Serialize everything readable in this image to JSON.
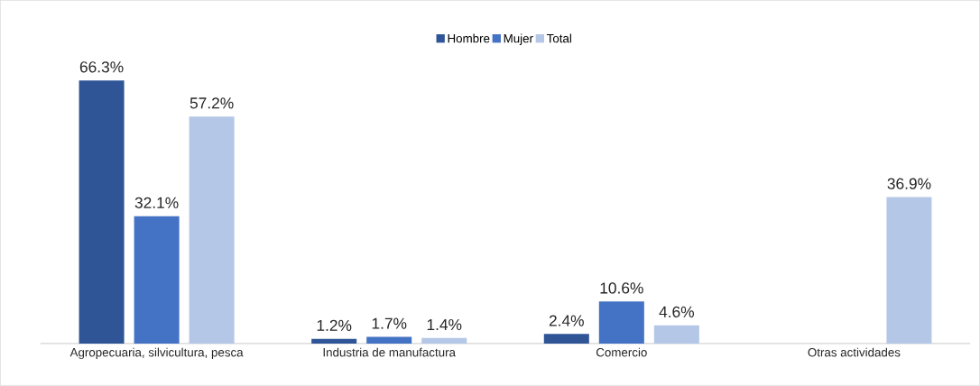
{
  "chart_data": {
    "type": "bar",
    "categories": [
      "Agropecuaria, silvicultura, pesca",
      "Industria de manufactura",
      "Comercio",
      "Otras actividades"
    ],
    "legend": "top",
    "series": [
      {
        "name": "Hombre",
        "color": "#2f5597",
        "values": [
          66.3,
          1.2,
          2.4,
          null
        ],
        "value_labels": [
          "66.3%",
          "1.2%",
          "2.4%",
          null
        ]
      },
      {
        "name": "Mujer",
        "color": "#4472c4",
        "values": [
          32.1,
          1.7,
          10.6,
          null
        ],
        "value_labels": [
          "32.1%",
          "1.7%",
          "10.6%",
          null
        ]
      },
      {
        "name": "Total",
        "color": "#b4c7e7",
        "values": [
          57.2,
          1.4,
          4.6,
          36.9
        ],
        "value_labels": [
          "57.2%",
          "1.4%",
          "4.6%",
          "36.9%"
        ]
      }
    ]
  }
}
